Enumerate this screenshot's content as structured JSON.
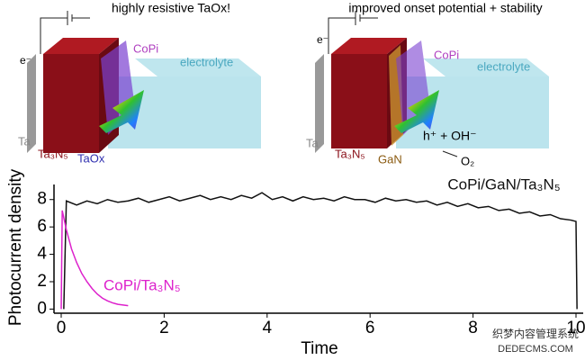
{
  "chart_data": {
    "type": "line",
    "x_label": "Time",
    "y_label": "Photocurrent density",
    "xlim": [
      -0.14,
      10.14
    ],
    "xticks": [
      0,
      2,
      4,
      6,
      8,
      10
    ],
    "ylim": [
      -0.3,
      9.1
    ],
    "yticks": [
      0,
      2,
      4,
      6,
      8
    ],
    "series": [
      {
        "name": "CoPi/GaN/Ta₃N₅",
        "color": "#111111",
        "x": [
          0.05,
          0.1,
          0.3,
          0.5,
          0.7,
          0.9,
          1.1,
          1.3,
          1.5,
          1.7,
          1.9,
          2.1,
          2.3,
          2.5,
          2.7,
          2.9,
          3.1,
          3.3,
          3.5,
          3.7,
          3.9,
          4.1,
          4.3,
          4.5,
          4.7,
          4.9,
          5.1,
          5.3,
          5.5,
          5.7,
          5.9,
          6.1,
          6.3,
          6.5,
          6.7,
          6.9,
          7.1,
          7.3,
          7.5,
          7.7,
          7.9,
          8.1,
          8.3,
          8.5,
          8.7,
          8.9,
          9.1,
          9.3,
          9.5,
          9.7,
          9.9,
          10.0,
          10.02
        ],
        "values": [
          0,
          7.9,
          7.6,
          7.9,
          7.7,
          8.0,
          7.8,
          7.9,
          8.1,
          7.8,
          8.0,
          8.2,
          7.9,
          8.1,
          8.3,
          8.0,
          8.2,
          8.0,
          8.3,
          8.1,
          8.5,
          8.0,
          8.2,
          7.9,
          8.2,
          8.0,
          8.1,
          7.9,
          8.2,
          8.0,
          8.0,
          7.8,
          8.1,
          7.9,
          8.0,
          7.8,
          7.9,
          7.6,
          7.8,
          7.5,
          7.7,
          7.4,
          7.5,
          7.2,
          7.3,
          7.0,
          7.1,
          6.8,
          6.9,
          6.6,
          6.5,
          6.4,
          0
        ]
      },
      {
        "name": "CoPi/Ta₃N₅",
        "color": "#dd22cc",
        "x": [
          0,
          0.02,
          0.1,
          0.2,
          0.3,
          0.4,
          0.5,
          0.6,
          0.7,
          0.8,
          0.9,
          1.0,
          1.1,
          1.2,
          1.3
        ],
        "values": [
          0,
          7.2,
          5.8,
          4.4,
          3.4,
          2.6,
          2.0,
          1.5,
          1.1,
          0.8,
          0.6,
          0.45,
          0.35,
          0.3,
          0.25
        ]
      }
    ]
  },
  "diagrams": [
    {
      "title": "highly resistive TaOx!",
      "electron": "e⁻",
      "copi": "CoPi",
      "electrolyte": "electrolyte",
      "ta": "Ta",
      "ta3n5": "Ta₃N₅",
      "interlayer": "TaOx"
    },
    {
      "title": "improved onset potential + stability",
      "electron": "e⁻",
      "copi": "CoPi",
      "electrolyte": "electrolyte",
      "ta": "Ta",
      "ta3n5": "Ta₃N₅",
      "interlayer": "GaN",
      "reaction": "h⁺ + OH⁻",
      "product": "O₂"
    }
  ],
  "watermark": {
    "line1": "织梦内容管理系统",
    "line2": "DEDECMS.COM"
  }
}
